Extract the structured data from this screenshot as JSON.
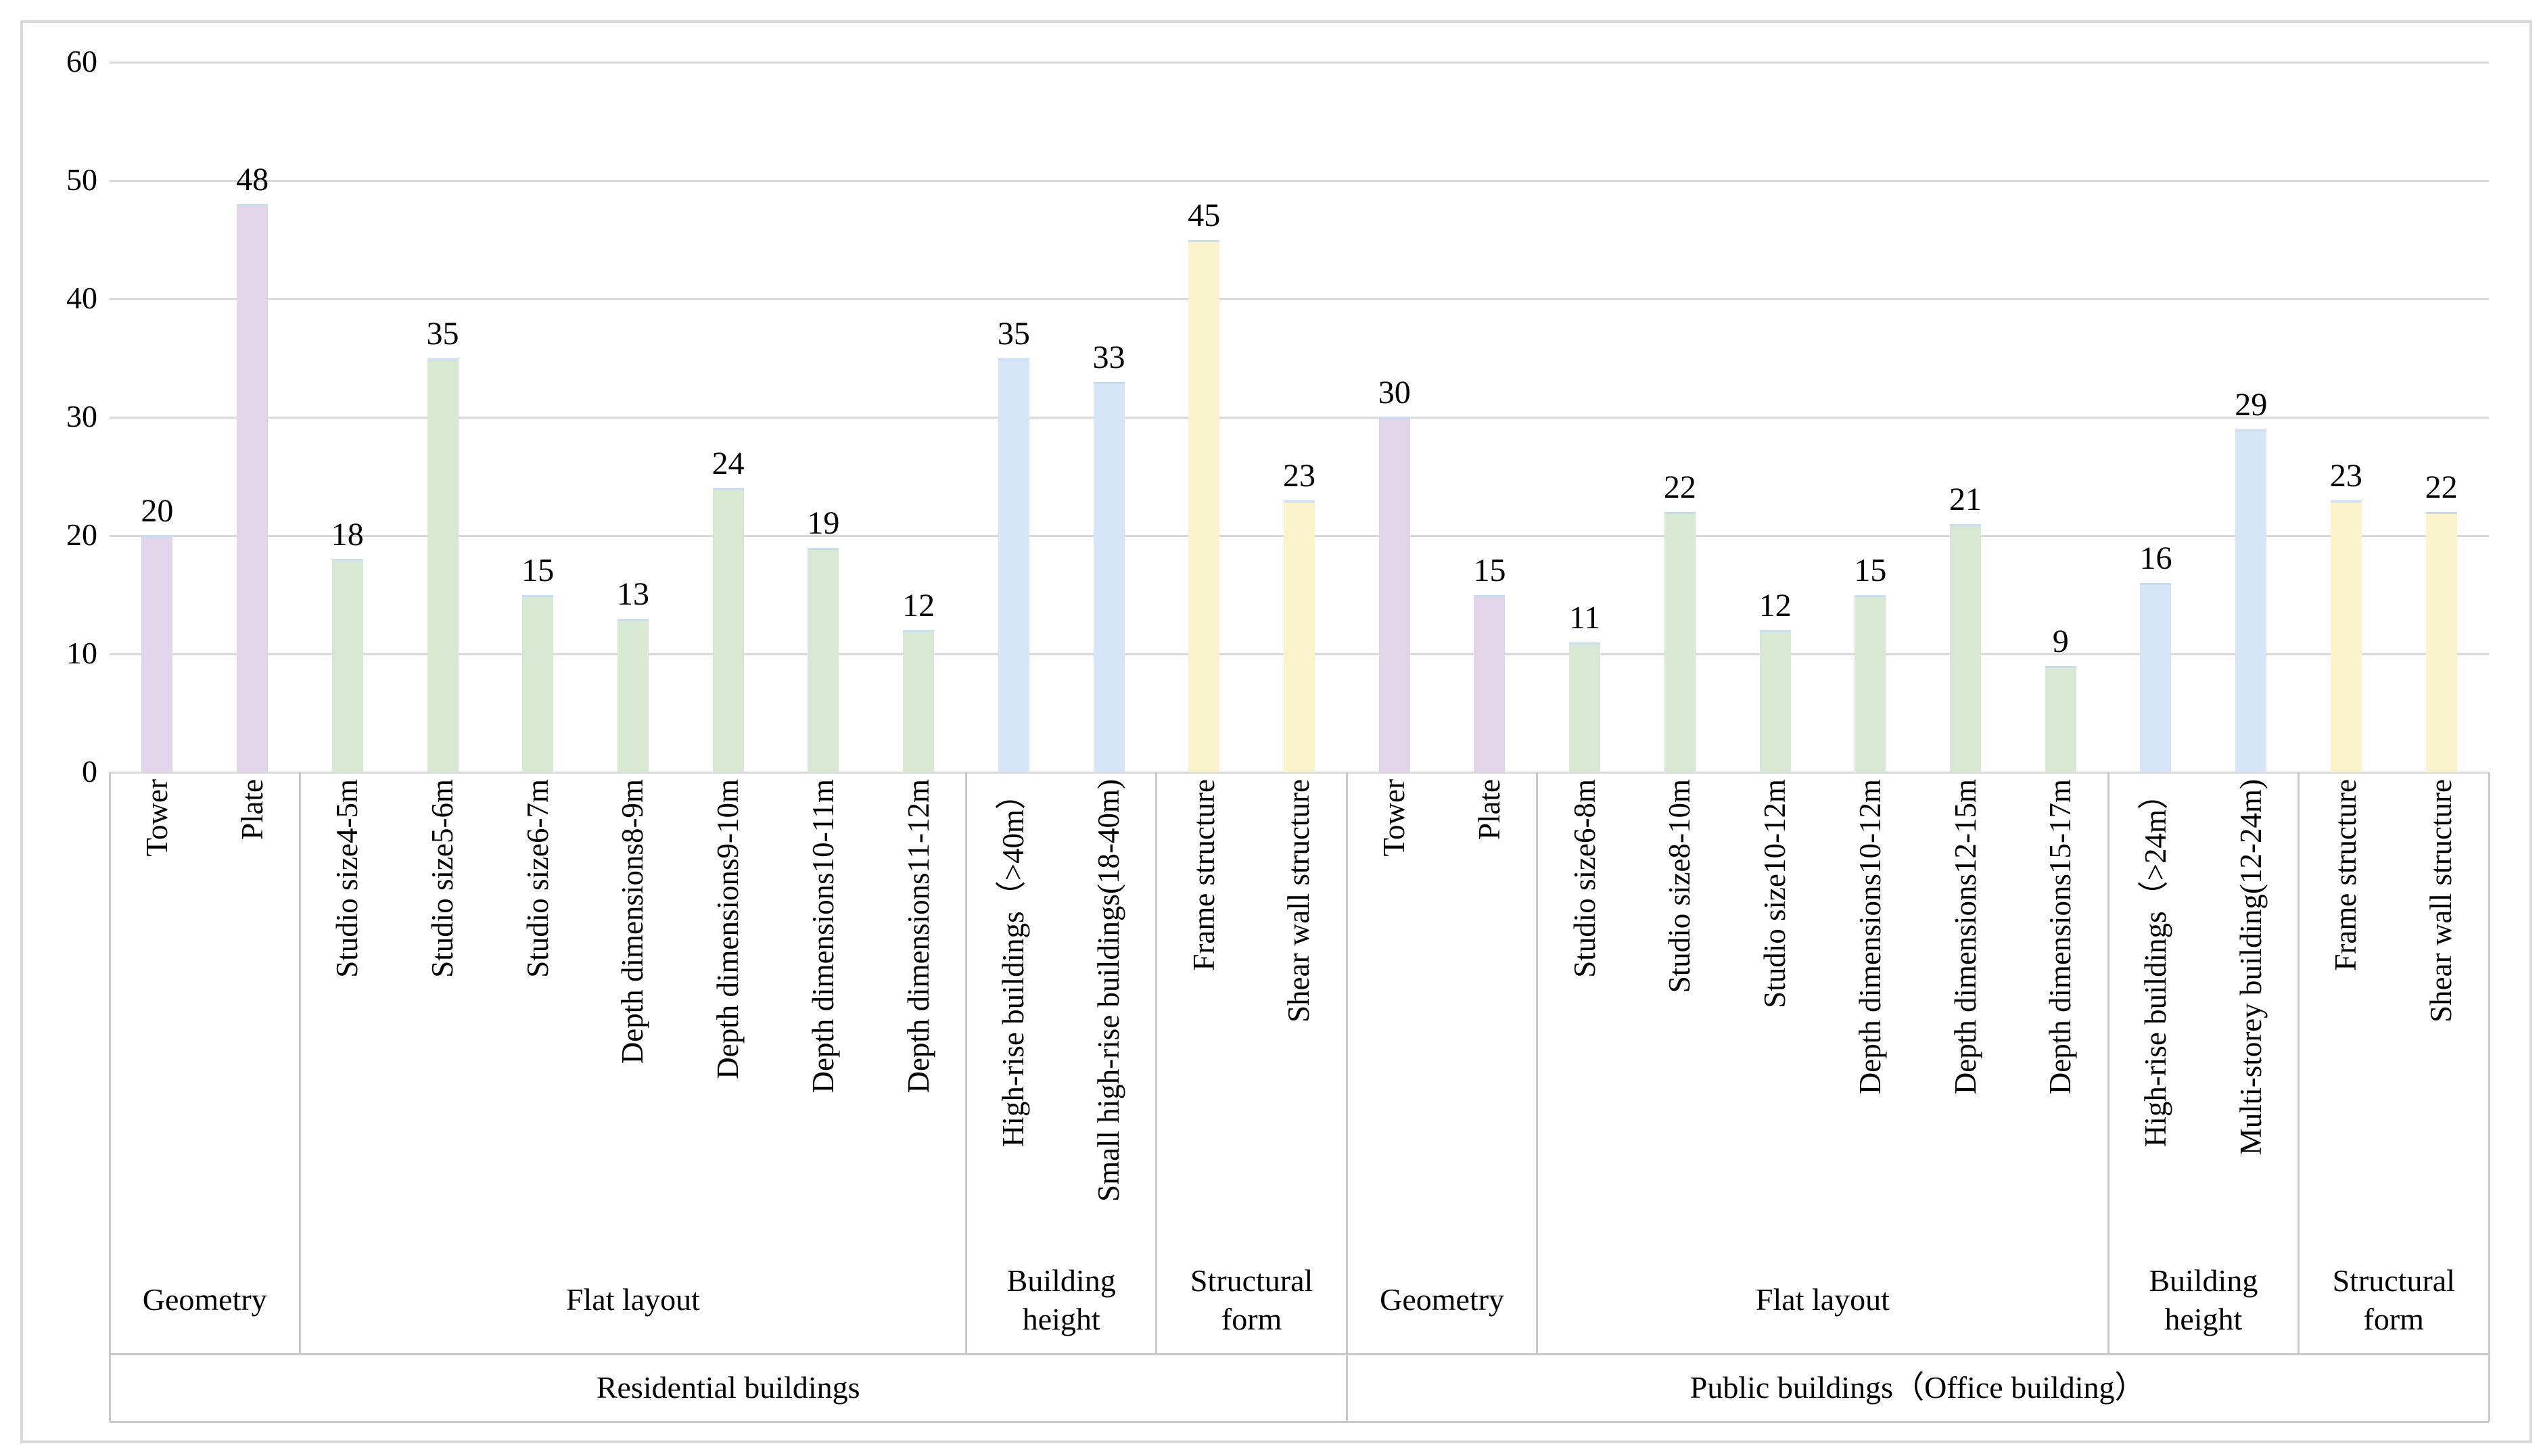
{
  "chart_data": {
    "type": "bar",
    "title": "",
    "xlabel": "",
    "ylabel": "",
    "ylim": [
      0,
      60
    ],
    "yticks": [
      0,
      10,
      20,
      30,
      40,
      50,
      60
    ],
    "grid": true,
    "legend": null,
    "bar_cap_color": "#c9dcf0",
    "gridline_color": "#d9d9d9",
    "table_line_color": "#c9c9c9",
    "groups": [
      {
        "label": "Residential buildings",
        "subgroups": [
          {
            "label": "Geometry",
            "color": "#e2d5e9",
            "bars": [
              {
                "label": "Tower",
                "value": 20
              },
              {
                "label": "Plate",
                "value": 48
              }
            ]
          },
          {
            "label": "Flat layout",
            "color": "#d8e9d3",
            "bars": [
              {
                "label": "Studio size4-5m",
                "value": 18
              },
              {
                "label": "Studio size5-6m",
                "value": 35
              },
              {
                "label": "Studio size6-7m",
                "value": 15
              },
              {
                "label": "Depth dimensions8-9m",
                "value": 13
              },
              {
                "label": "Depth dimensions9-10m",
                "value": 24
              },
              {
                "label": "Depth dimensions10-11m",
                "value": 19
              },
              {
                "label": "Depth dimensions11-12m",
                "value": 12
              }
            ]
          },
          {
            "label": "Building height",
            "color": "#d7e5f8",
            "bars": [
              {
                "label": "High-rise buildings（>40m）",
                "value": 35
              },
              {
                "label": "Small high-rise buildings(18-40m)",
                "value": 33
              }
            ]
          },
          {
            "label": "Structural form",
            "color": "#fbf3cc",
            "bars": [
              {
                "label": "Frame structure",
                "value": 45
              },
              {
                "label": "Shear wall structure",
                "value": 23
              }
            ]
          }
        ]
      },
      {
        "label": "Public buildings（Office building）",
        "subgroups": [
          {
            "label": "Geometry",
            "color": "#e2d5e9",
            "bars": [
              {
                "label": "Tower",
                "value": 30
              },
              {
                "label": "Plate",
                "value": 15
              }
            ]
          },
          {
            "label": "Flat layout",
            "color": "#d8e9d3",
            "bars": [
              {
                "label": "Studio size6-8m",
                "value": 11
              },
              {
                "label": "Studio size8-10m",
                "value": 22
              },
              {
                "label": "Studio size10-12m",
                "value": 12
              },
              {
                "label": "Depth dimensions10-12m",
                "value": 15
              },
              {
                "label": "Depth dimensions12-15m",
                "value": 21
              },
              {
                "label": "Depth dimensions15-17m",
                "value": 9
              }
            ]
          },
          {
            "label": "Building height",
            "color": "#d7e5f8",
            "bars": [
              {
                "label": "High-rise buildings（>24m）",
                "value": 16
              },
              {
                "label": "Multi-storey building(12-24m)",
                "value": 29
              }
            ]
          },
          {
            "label": "Structural form",
            "color": "#fbf3cc",
            "bars": [
              {
                "label": "Frame structure",
                "value": 23
              },
              {
                "label": "Shear wall structure",
                "value": 22
              }
            ]
          }
        ]
      }
    ]
  }
}
